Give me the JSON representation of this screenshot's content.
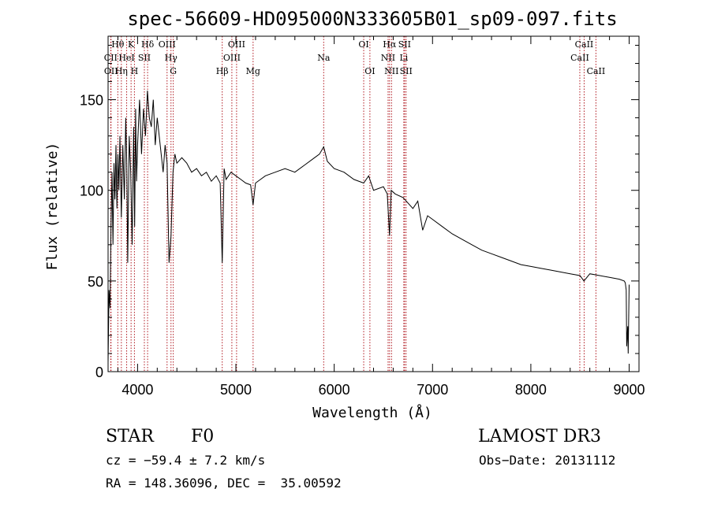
{
  "chart_data": {
    "type": "line",
    "title": "spec-56609-HD095000N333605B01_sp09-097.fits",
    "xlabel": "Wavelength (Å)",
    "ylabel": "Flux (relative)",
    "xlim": [
      3700,
      9100
    ],
    "ylim": [
      0,
      185
    ],
    "x_ticks": [
      4000,
      5000,
      6000,
      7000,
      8000,
      9000
    ],
    "y_ticks": [
      0,
      50,
      100,
      150
    ],
    "grid": false,
    "series": [
      {
        "name": "flux",
        "x": [
          3700,
          3710,
          3720,
          3730,
          3740,
          3750,
          3760,
          3770,
          3780,
          3790,
          3800,
          3810,
          3820,
          3835,
          3850,
          3865,
          3880,
          3890,
          3900,
          3915,
          3930,
          3945,
          3960,
          3970,
          3980,
          3990,
          4000,
          4020,
          4040,
          4060,
          4080,
          4100,
          4120,
          4140,
          4160,
          4180,
          4200,
          4220,
          4240,
          4260,
          4280,
          4300,
          4320,
          4340,
          4360,
          4380,
          4400,
          4450,
          4500,
          4550,
          4600,
          4650,
          4700,
          4750,
          4800,
          4840,
          4861,
          4880,
          4900,
          4950,
          5000,
          5050,
          5100,
          5150,
          5175,
          5200,
          5250,
          5300,
          5400,
          5500,
          5600,
          5700,
          5800,
          5850,
          5893,
          5930,
          6000,
          6100,
          6200,
          6300,
          6350,
          6400,
          6500,
          6540,
          6563,
          6580,
          6620,
          6700,
          6800,
          6850,
          6900,
          6950,
          7000,
          7100,
          7200,
          7300,
          7400,
          7500,
          7600,
          7700,
          7800,
          7900,
          8000,
          8100,
          8200,
          8300,
          8400,
          8500,
          8540,
          8600,
          8700,
          8800,
          8900,
          8950,
          8960,
          8970,
          8975,
          8985,
          8990,
          9000
        ],
        "values": [
          5,
          45,
          35,
          80,
          110,
          70,
          115,
          95,
          125,
          90,
          120,
          100,
          130,
          85,
          125,
          95,
          140,
          115,
          60,
          130,
          110,
          70,
          135,
          80,
          145,
          105,
          125,
          150,
          120,
          145,
          130,
          155,
          140,
          135,
          150,
          125,
          140,
          130,
          120,
          110,
          125,
          115,
          60,
          75,
          110,
          120,
          115,
          118,
          115,
          110,
          112,
          108,
          110,
          105,
          108,
          104,
          60,
          112,
          106,
          110,
          108,
          106,
          104,
          103,
          92,
          104,
          106,
          108,
          110,
          112,
          110,
          114,
          118,
          120,
          124,
          116,
          112,
          110,
          106,
          104,
          108,
          100,
          102,
          98,
          75,
          100,
          98,
          96,
          90,
          94,
          78,
          86,
          84,
          80,
          76,
          73,
          70,
          67,
          65,
          63,
          61,
          59,
          58,
          57,
          56,
          55,
          54,
          53,
          50,
          54,
          53,
          52,
          51,
          50,
          49,
          45,
          14,
          25,
          10,
          48
        ]
      }
    ],
    "line_markers": [
      {
        "name": "CII",
        "wavelength": 3727,
        "row": 1
      },
      {
        "name": "OII",
        "wavelength": 3730,
        "row": 2
      },
      {
        "name": "Hθ",
        "wavelength": 3799,
        "row": 0
      },
      {
        "name": "Hη",
        "wavelength": 3835,
        "row": 2
      },
      {
        "name": "HeI",
        "wavelength": 3889,
        "row": 1
      },
      {
        "name": "K",
        "wavelength": 3934,
        "row": 0
      },
      {
        "name": "H",
        "wavelength": 3968,
        "row": 2
      },
      {
        "name": "SII",
        "wavelength": 4069,
        "row": 1
      },
      {
        "name": "Hδ",
        "wavelength": 4102,
        "row": 0
      },
      {
        "name": "OIII",
        "wavelength": 4300,
        "row": 0
      },
      {
        "name": "Hγ",
        "wavelength": 4340,
        "row": 1
      },
      {
        "name": "G",
        "wavelength": 4363,
        "row": 2
      },
      {
        "name": "Hβ",
        "wavelength": 4861,
        "row": 2
      },
      {
        "name": "OIII",
        "wavelength": 4959,
        "row": 1
      },
      {
        "name": "OIII",
        "wavelength": 5007,
        "row": 0
      },
      {
        "name": "Mg",
        "wavelength": 5175,
        "row": 2
      },
      {
        "name": "Na",
        "wavelength": 5893,
        "row": 1
      },
      {
        "name": "OI",
        "wavelength": 6300,
        "row": 0
      },
      {
        "name": "OI",
        "wavelength": 6363,
        "row": 2
      },
      {
        "name": "NII",
        "wavelength": 6548,
        "row": 1
      },
      {
        "name": "Hα",
        "wavelength": 6563,
        "row": 0
      },
      {
        "name": "NII",
        "wavelength": 6583,
        "row": 2
      },
      {
        "name": "Li",
        "wavelength": 6708,
        "row": 1
      },
      {
        "name": "SII",
        "wavelength": 6716,
        "row": 0
      },
      {
        "name": "SII",
        "wavelength": 6731,
        "row": 2
      },
      {
        "name": "CaII",
        "wavelength": 8498,
        "row": 1
      },
      {
        "name": "CaII",
        "wavelength": 8542,
        "row": 0
      },
      {
        "name": "CaII",
        "wavelength": 8662,
        "row": 2
      }
    ]
  },
  "info": {
    "class": "STAR",
    "subclass": "F0",
    "survey": "LAMOST DR3",
    "cz": "cz = −59.4 ± 7.2 km/s",
    "obs_date": "Obs−Date: 20131112",
    "coords": "RA = 148.36096, DEC =  35.00592"
  }
}
